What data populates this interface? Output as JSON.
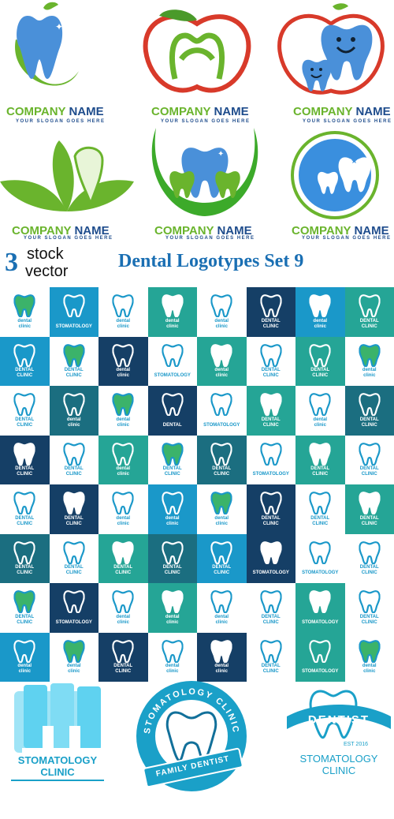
{
  "logos_top": [
    {
      "company": [
        "COMPANY",
        "NAME"
      ],
      "slogan": "YOUR SLOGAN GOES HERE",
      "icon": "tooth-swoosh-icon"
    },
    {
      "company": [
        "COMPANY",
        "NAME"
      ],
      "slogan": "YOUR SLOGAN GOES HERE",
      "icon": "apple-tooth-icon"
    },
    {
      "company": [
        "COMPANY",
        "NAME"
      ],
      "slogan": "YOUR SLOGAN GOES HERE",
      "icon": "smiling-teeth-apple-icon"
    },
    {
      "company": [
        "COMPANY",
        "NAME"
      ],
      "slogan": "YOUR SLOGAN GOES HERE",
      "icon": "leaf-tooth-icon"
    },
    {
      "company": [
        "COMPANY",
        "NAME"
      ],
      "slogan": "YOUR SLOGAN GOES HERE",
      "icon": "crescent-tooth-icon"
    },
    {
      "company": [
        "COMPANY",
        "NAME"
      ],
      "slogan": "YOUR SLOGAN GOES HERE",
      "icon": "circle-teeth-icon"
    }
  ],
  "watermark": {
    "number": "3",
    "word1": "stock",
    "word2": "vector"
  },
  "title": "Dental Logotypes Set 9",
  "grid_colors": [
    "#ffffff",
    "#1a98c9",
    "#153f66",
    "#25a596",
    "#1b6e80"
  ],
  "grid_cells": [
    [
      [
        "dental",
        "clinic"
      ],
      0
    ],
    [
      [
        "STOMATOLOGY"
      ],
      1
    ],
    [
      [
        "dental",
        "clinic"
      ],
      0
    ],
    [
      [
        "dental",
        "clinic"
      ],
      3
    ],
    [
      [
        "dental",
        "clinic"
      ],
      0
    ],
    [
      [
        "DENTAL",
        "CLINIC"
      ],
      2
    ],
    [
      [
        "dental",
        "clinic"
      ],
      1
    ],
    [
      [
        "DENTAL",
        "CLINIC"
      ],
      3
    ],
    [
      [
        "DENTAL",
        "CLINIC"
      ],
      1
    ],
    [
      [
        "DENTAL",
        "CLINIC"
      ],
      0
    ],
    [
      [
        "dental",
        "clinic"
      ],
      2
    ],
    [
      [
        "STOMATOLOGY"
      ],
      0
    ],
    [
      [
        "dental",
        "clinic"
      ],
      3
    ],
    [
      [
        "DENTAL",
        "CLINIC"
      ],
      0
    ],
    [
      [
        "DENTAL",
        "CLINIC"
      ],
      3
    ],
    [
      [
        "dental",
        "clinic"
      ],
      0
    ],
    [
      [
        "DENTAL",
        "CLINIC"
      ],
      0
    ],
    [
      [
        "dental",
        "clinic"
      ],
      4
    ],
    [
      [
        "dental",
        "clinic"
      ],
      0
    ],
    [
      [
        "DENTAL"
      ],
      2
    ],
    [
      [
        "STOMATOLOGY"
      ],
      0
    ],
    [
      [
        "DENTAL",
        "CLINIC"
      ],
      3
    ],
    [
      [
        "dental",
        "clinic"
      ],
      0
    ],
    [
      [
        "DENTAL",
        "CLINIC"
      ],
      4
    ],
    [
      [
        "DENTAL",
        "CLINIC"
      ],
      2
    ],
    [
      [
        "DENTAL",
        "CLINIC"
      ],
      0
    ],
    [
      [
        "dental",
        "clinic"
      ],
      3
    ],
    [
      [
        "DENTAL",
        "CLINIC"
      ],
      0
    ],
    [
      [
        "DENTAL",
        "CLINIC"
      ],
      4
    ],
    [
      [
        "STOMATOLOGY"
      ],
      0
    ],
    [
      [
        "DENTAL",
        "CLINIC"
      ],
      3
    ],
    [
      [
        "DENTAL",
        "CLINIC"
      ],
      0
    ],
    [
      [
        "DENTAL",
        "CLINIC"
      ],
      0
    ],
    [
      [
        "DENTAL",
        "CLINIC"
      ],
      2
    ],
    [
      [
        "dental",
        "clinic"
      ],
      0
    ],
    [
      [
        "dental",
        "clinic"
      ],
      1
    ],
    [
      [
        "dental",
        "clinic"
      ],
      0
    ],
    [
      [
        "DENTAL",
        "CLINIC"
      ],
      2
    ],
    [
      [
        "DENTAL",
        "CLINIC"
      ],
      0
    ],
    [
      [
        "DENTAL",
        "CLINIC"
      ],
      3
    ],
    [
      [
        "DENTAL",
        "CLINIC"
      ],
      4
    ],
    [
      [
        "DENTAL",
        "CLINIC"
      ],
      0
    ],
    [
      [
        "DENTAL",
        "CLINIC"
      ],
      3
    ],
    [
      [
        "DENTAL",
        "CLINIC"
      ],
      4
    ],
    [
      [
        "DENTAL",
        "CLINIC"
      ],
      1
    ],
    [
      [
        "STOMATOLOGY"
      ],
      2
    ],
    [
      [
        "STOMATOLOGY"
      ],
      0
    ],
    [
      [
        "DENTAL",
        "CLINIC"
      ],
      0
    ],
    [
      [
        "DENTAL",
        "CLINIC"
      ],
      0
    ],
    [
      [
        "STOMATOLOGY"
      ],
      2
    ],
    [
      [
        "dental",
        "clinic"
      ],
      0
    ],
    [
      [
        "dental",
        "clinic"
      ],
      3
    ],
    [
      [
        "dental",
        "clinic"
      ],
      0
    ],
    [
      [
        "DENTAL",
        "CLINIC"
      ],
      0
    ],
    [
      [
        "STOMATOLOGY"
      ],
      3
    ],
    [
      [
        "DENTAL",
        "CLINIC"
      ],
      0
    ],
    [
      [
        "dental",
        "clinic"
      ],
      1
    ],
    [
      [
        "dental",
        "clinic"
      ],
      0
    ],
    [
      [
        "DENTAL",
        "CLINIC"
      ],
      2
    ],
    [
      [
        "dental",
        "clinic"
      ],
      0
    ],
    [
      [
        "dental",
        "clinic"
      ],
      2
    ],
    [
      [
        "DENTAL",
        "CLINIC"
      ],
      0
    ],
    [
      [
        "STOMATOLOGY"
      ],
      3
    ],
    [
      [
        "dental",
        "clinic"
      ],
      0
    ]
  ],
  "bottom": {
    "left": {
      "line1": "STOMATOLOGY",
      "line2": "CLINIC"
    },
    "center": {
      "ring_top": "STOMATOLOGY CLINIC",
      "ring_bottom": "FAMILY DENTIST"
    },
    "right": {
      "ribbon": "DENTIST",
      "est": "EST 2016",
      "line1": "STOMATOLOGY",
      "line2": "CLINIC"
    }
  }
}
